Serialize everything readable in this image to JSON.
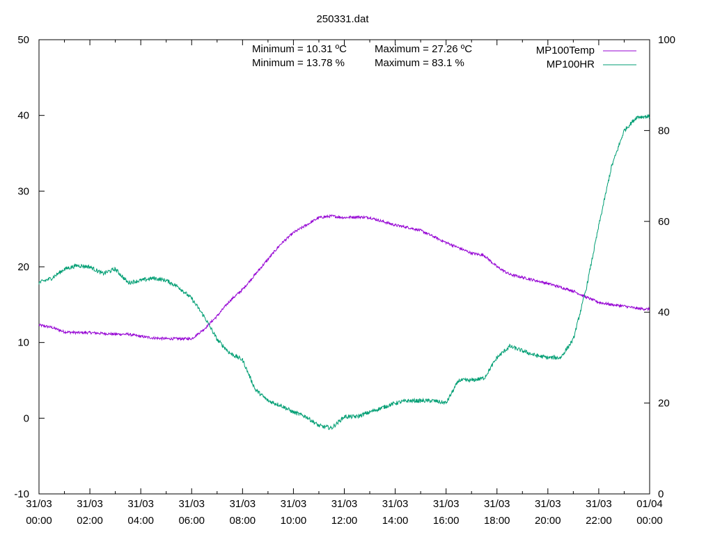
{
  "chart_data": {
    "type": "line",
    "title": "250331.dat",
    "x_tick_labels": [
      {
        "date": "31/03",
        "time": "00:00"
      },
      {
        "date": "31/03",
        "time": "02:00"
      },
      {
        "date": "31/03",
        "time": "04:00"
      },
      {
        "date": "31/03",
        "time": "06:00"
      },
      {
        "date": "31/03",
        "time": "08:00"
      },
      {
        "date": "31/03",
        "time": "10:00"
      },
      {
        "date": "31/03",
        "time": "12:00"
      },
      {
        "date": "31/03",
        "time": "14:00"
      },
      {
        "date": "31/03",
        "time": "16:00"
      },
      {
        "date": "31/03",
        "time": "18:00"
      },
      {
        "date": "31/03",
        "time": "20:00"
      },
      {
        "date": "31/03",
        "time": "22:00"
      },
      {
        "date": "01/04",
        "time": "00:00"
      }
    ],
    "x_range": [
      "2025-03-31 00:00",
      "2025-04-01 00:00"
    ],
    "ylim": [
      -10,
      50
    ],
    "y_ticks": [
      -10,
      0,
      10,
      20,
      30,
      40,
      50
    ],
    "y2lim": [
      0,
      100
    ],
    "y2_ticks": [
      0,
      20,
      40,
      60,
      80,
      100
    ],
    "grid": false,
    "legend": "top-right",
    "annotations": {
      "temp_min": "Minimum = 10.31 ºC",
      "temp_max": "Maximum = 27.26 ºC",
      "hr_min": "Minimum = 13.78 %",
      "hr_max": "Maximum = 83.1 %"
    },
    "series": [
      {
        "name": "MP100Temp",
        "axis": "y",
        "color": "#9400d3",
        "x": [
          "00:00",
          "00:30",
          "01:00",
          "01:30",
          "02:00",
          "02:30",
          "03:00",
          "03:30",
          "04:00",
          "04:30",
          "05:00",
          "05:30",
          "06:00",
          "06:30",
          "07:00",
          "07:30",
          "08:00",
          "08:30",
          "09:00",
          "09:30",
          "10:00",
          "10:30",
          "11:00",
          "11:30",
          "12:00",
          "12:30",
          "13:00",
          "13:30",
          "14:00",
          "14:30",
          "15:00",
          "15:30",
          "16:00",
          "16:30",
          "17:00",
          "17:30",
          "18:00",
          "18:30",
          "19:00",
          "19:30",
          "20:00",
          "20:30",
          "21:00",
          "21:30",
          "22:00",
          "22:30",
          "23:00",
          "23:30",
          "24:00"
        ],
        "values": [
          12.3,
          12.0,
          11.4,
          11.3,
          11.3,
          11.2,
          11.1,
          11.1,
          10.8,
          10.6,
          10.5,
          10.5,
          10.5,
          11.8,
          13.5,
          15.5,
          17.0,
          19.0,
          21.0,
          23.0,
          24.5,
          25.5,
          26.5,
          26.7,
          26.5,
          26.6,
          26.5,
          26.0,
          25.5,
          25.2,
          24.8,
          24.0,
          23.2,
          22.5,
          21.8,
          21.5,
          20.0,
          19.0,
          18.6,
          18.2,
          17.8,
          17.3,
          16.8,
          16.0,
          15.3,
          15.0,
          14.8,
          14.5,
          14.4
        ]
      },
      {
        "name": "MP100HR",
        "axis": "y2",
        "color": "#009e73",
        "x": [
          "00:00",
          "00:30",
          "01:00",
          "01:30",
          "02:00",
          "02:30",
          "03:00",
          "03:30",
          "04:00",
          "04:30",
          "05:00",
          "05:30",
          "06:00",
          "06:30",
          "07:00",
          "07:30",
          "08:00",
          "08:30",
          "09:00",
          "09:30",
          "10:00",
          "10:30",
          "11:00",
          "11:30",
          "12:00",
          "12:30",
          "13:00",
          "13:30",
          "14:00",
          "14:30",
          "15:00",
          "15:30",
          "16:00",
          "16:30",
          "17:00",
          "17:30",
          "18:00",
          "18:30",
          "19:00",
          "19:30",
          "20:00",
          "20:30",
          "21:00",
          "21:30",
          "22:00",
          "22:30",
          "23:00",
          "23:30",
          "24:00"
        ],
        "values": [
          46.5,
          47.5,
          49.5,
          50.3,
          50.0,
          48.5,
          49.5,
          46.5,
          47.0,
          47.5,
          47.0,
          45.5,
          43.0,
          39.0,
          34.0,
          31.0,
          29.5,
          23.0,
          20.5,
          19.5,
          18.0,
          17.0,
          15.0,
          14.5,
          17.0,
          17.0,
          18.0,
          19.0,
          20.0,
          20.5,
          20.5,
          20.5,
          20.0,
          25.0,
          25.0,
          25.5,
          30.0,
          32.5,
          31.5,
          30.5,
          30.0,
          30.0,
          34.0,
          45.0,
          59.0,
          72.0,
          80.0,
          83.0,
          83.1
        ]
      }
    ]
  }
}
